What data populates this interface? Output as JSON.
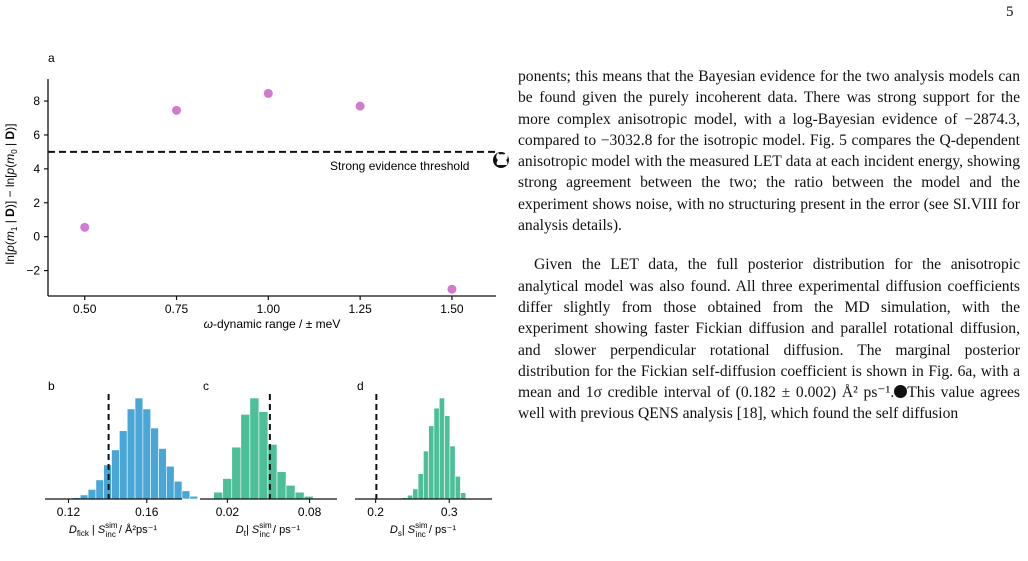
{
  "page_number": "5",
  "figure": {
    "panel_a": {
      "label": "a",
      "ylabel_html": "ln[<tspan font-style='italic'>p</tspan>(<tspan font-style='italic'>m</tspan><tspan font-size='8' dy='3'>1</tspan><tspan dy='-3'> | </tspan><tspan font-weight='bold'>D</tspan>)] − ln[<tspan font-style='italic'>p</tspan>(<tspan font-style='italic'>m</tspan><tspan font-size='8' dy='3'>0</tspan><tspan dy='-3'> | </tspan><tspan font-weight='bold'>D</tspan>)]",
      "xlabel": "ω-dynamic range / ± meV",
      "threshold_label": "Strong evidence threshold",
      "threshold_value": 5,
      "point_color": "#d07ad0"
    },
    "panel_b": {
      "label": "b",
      "xlabel": "D_fick | S_inc^sim / Å²ps⁻¹",
      "ticks": [
        "0.12",
        "0.16"
      ],
      "color": "#4aa6d6"
    },
    "panel_c": {
      "label": "c",
      "xlabel": "D_t | S_inc^sim / ps⁻¹",
      "ticks": [
        "0.02",
        "0.08"
      ],
      "color": "#4dbf98"
    },
    "panel_d": {
      "label": "d",
      "xlabel": "D_s | S_inc^sim / ps⁻¹",
      "ticks": [
        "0.2",
        "0.3"
      ],
      "color": "#4dbf98"
    }
  },
  "chart_data": [
    {
      "type": "scatter",
      "title": "",
      "xlabel": "ω-dynamic range / ± meV",
      "ylabel": "ln[p(m1 | D)] − ln[p(m0 | D)]",
      "x": [
        0.5,
        0.75,
        1.0,
        1.25,
        1.5
      ],
      "y": [
        0.55,
        7.45,
        8.45,
        7.7,
        -3.1
      ],
      "xlim": [
        0.4,
        1.62
      ],
      "ylim": [
        -3.5,
        9.3
      ],
      "xticks": [
        "0.50",
        "0.75",
        "1.00",
        "1.25",
        "1.50"
      ],
      "yticks": [
        -2,
        0,
        2,
        4,
        6,
        8
      ],
      "threshold": 5,
      "grid": false
    },
    {
      "type": "bar",
      "title": "",
      "xlabel": "D_fick | S_inc^sim / Å²ps⁻¹",
      "x_start": 0.122,
      "bin_width": 0.004,
      "values": [
        1,
        3,
        7,
        14,
        25,
        36,
        50,
        66,
        74,
        66,
        52,
        37,
        24,
        13,
        6,
        2
      ],
      "xlim": [
        0.108,
        0.178
      ],
      "reference_line": 0.1405
    },
    {
      "type": "bar",
      "title": "",
      "xlabel": "D_t | S_inc^sim / ps⁻¹",
      "x_start": 0.01,
      "bin_width": 0.0066,
      "values": [
        5,
        15,
        38,
        62,
        74,
        64,
        40,
        20,
        10,
        5,
        2
      ],
      "xlim": [
        0.0,
        0.1
      ],
      "reference_line": 0.051
    },
    {
      "type": "bar",
      "title": "",
      "xlabel": "D_s | S_inc^sim / ps⁻¹",
      "x_start": 0.236,
      "bin_width": 0.0072,
      "values": [
        1,
        3,
        8,
        20,
        38,
        58,
        72,
        80,
        66,
        42,
        18,
        5
      ],
      "xlim": [
        0.172,
        0.358
      ],
      "reference_line": 0.201
    }
  ],
  "text": {
    "paragraph1": "ponents; this means that the Bayesian evidence for the two analysis models can be found given the purely incoherent data. There was strong support for the more complex anisotropic model, with a log-Bayesian evidence of −2874.3, compared to −3032.8 for the isotropic model. Fig. 5 compares the Q-dependent anisotropic model with the measured LET data at each incident energy, showing strong agreement between the two; the ratio between the model and the experiment shows noise, with no structuring present in the error (see SI.VIII for analysis details).",
    "paragraph2a": "Given the LET data, the full posterior distribution for the anisotropic analytical model was also found. All three experimental diffusion coefficients differ slightly from those obtained from the MD simulation, with the experiment showing faster Fickian diffusion and parallel rotational diffusion, and slower perpendicular rotational diffusion. The marginal posterior distribution for the Fickian self-diffusion coefficient is shown in Fig. 6a, with a mean and 1σ credible interval of (0.182 ± 0.002) Å² ps⁻¹.",
    "paragraph2b": "This value agrees well with previous QENS analysis [18], which found the self diffusion"
  }
}
